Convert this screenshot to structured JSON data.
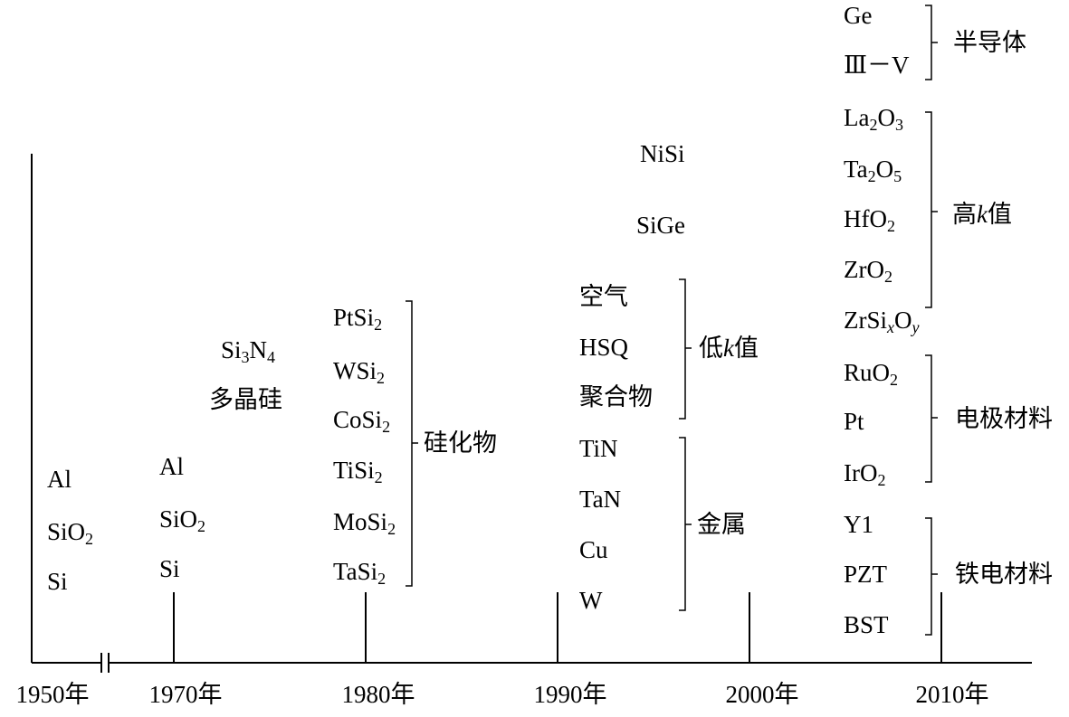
{
  "years": [
    "1950年",
    "1970年",
    "1980年",
    "1990年",
    "2000年",
    "2010年"
  ],
  "columns": {
    "y1950": [
      "Al",
      "SiO2",
      "Si"
    ],
    "y1970": [
      "Al",
      "SiO2",
      "Si"
    ],
    "y1970s_upper": [
      "Si3N4",
      "多晶硅"
    ],
    "y1980": [
      "PtSi2",
      "WSi2",
      "CoSi2",
      "TiSi2",
      "MoSi2",
      "TaSi2"
    ],
    "y1990_top": [
      "NiSi",
      "SiGe"
    ],
    "y1990_lowk": [
      "空气",
      "HSQ",
      "聚合物"
    ],
    "y1990_metal": [
      "TiN",
      "TaN",
      "Cu",
      "W"
    ],
    "y2000_semi": [
      "Ge",
      "Ⅲ－V"
    ],
    "y2000_highk": [
      "La2O3",
      "Ta2O5",
      "HfO2",
      "ZrO2",
      "ZrSixOy"
    ],
    "y2000_electrode": [
      "RuO2",
      "Pt",
      "IrO2"
    ],
    "y2000_ferro": [
      "Y1",
      "PZT",
      "BST"
    ]
  },
  "groups": {
    "silicide": "硅化物",
    "low_k": "低k值",
    "metal": "金属",
    "semiconductor": "半导体",
    "high_k": "高k值",
    "electrode": "电极材料",
    "ferroelectric": "铁电材料"
  }
}
